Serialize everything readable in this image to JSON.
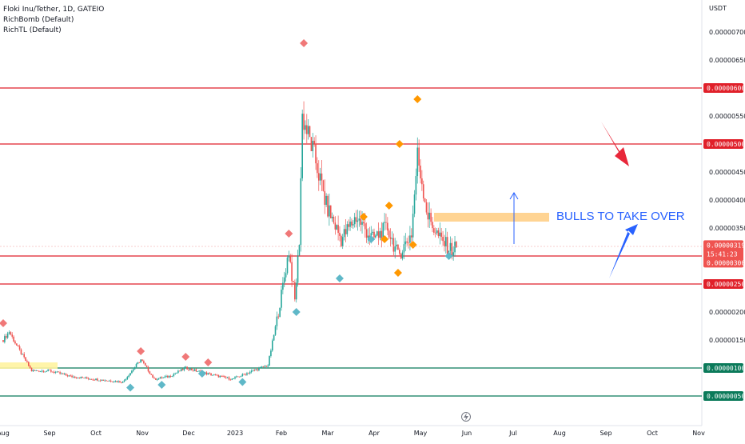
{
  "header": {
    "symbol_line": "Floki Inu/Tether, 1D, GATEIO",
    "indicators": [
      "RichBomb (Default)",
      "RichTL (Default)"
    ]
  },
  "price_axis": {
    "currency": "USDT",
    "ticks": [
      "0.00000700000",
      "0.00000650000",
      "0.00000550000",
      "0.00000450000",
      "0.00000400000",
      "0.00000350000",
      "0.00000200000",
      "0.00000150000"
    ]
  },
  "badges": {
    "current_price": "0.00000319428",
    "countdown": "15:41:23",
    "level_300": "0.00000300000",
    "level_600": "0.00000600000",
    "level_500": "0.00000500000",
    "level_250": "0.00000250000",
    "level_100": "0.00000100000",
    "level_050": "0.00000050000"
  },
  "time_axis": [
    "Aug",
    "Sep",
    "Oct",
    "Nov",
    "Dec",
    "2023",
    "Feb",
    "Mar",
    "Apr",
    "May",
    "Jun",
    "Jul",
    "Aug",
    "Sep",
    "Oct",
    "Nov"
  ],
  "annotation": {
    "text": "BULLS TO TAKE OVER"
  },
  "colors": {
    "bull": "#26a69a",
    "bear": "#ef5350",
    "red_line": "#e0202a",
    "green_line": "#0b7a5a",
    "blue": "#2962ff",
    "orange_zone": "#ffcc80",
    "diamond_red": "#f07878",
    "diamond_orange": "#ff9800",
    "diamond_teal": "#5fb8c8"
  },
  "chart_data": {
    "type": "candlestick",
    "title": "Floki Inu/Tether, 1D, GATEIO",
    "ylabel": "USDT",
    "ylim": [
      3e-07,
      7.5e-06
    ],
    "horizontal_levels": [
      {
        "value": 6e-06,
        "color": "red"
      },
      {
        "value": 5e-06,
        "color": "red"
      },
      {
        "value": 3e-06,
        "color": "red"
      },
      {
        "value": 2.5e-06,
        "color": "red"
      },
      {
        "value": 1e-06,
        "color": "green"
      },
      {
        "value": 5e-07,
        "color": "green"
      }
    ],
    "last_price": 3.19428e-06,
    "price_path": [
      [
        "2022-08-01",
        1.5e-06
      ],
      [
        "2022-08-05",
        1.65e-06
      ],
      [
        "2022-08-10",
        1.4e-06
      ],
      [
        "2022-08-20",
        9.5e-07
      ],
      [
        "2022-09-01",
        9.5e-07
      ],
      [
        "2022-09-15",
        8.5e-07
      ],
      [
        "2022-10-01",
        8e-07
      ],
      [
        "2022-10-20",
        7.5e-07
      ],
      [
        "2022-11-01",
        1.15e-06
      ],
      [
        "2022-11-10",
        8e-07
      ],
      [
        "2022-11-20",
        8.5e-07
      ],
      [
        "2022-12-01",
        1e-06
      ],
      [
        "2022-12-15",
        9e-07
      ],
      [
        "2023-01-01",
        8e-07
      ],
      [
        "2023-01-15",
        9.5e-07
      ],
      [
        "2023-01-25",
        1.05e-06
      ],
      [
        "2023-02-01",
        2e-06
      ],
      [
        "2023-02-08",
        3.1e-06
      ],
      [
        "2023-02-12",
        2.2e-06
      ],
      [
        "2023-02-15",
        3.3e-06
      ],
      [
        "2023-02-17",
        5.5e-06
      ],
      [
        "2023-02-25",
        4.8e-06
      ],
      [
        "2023-03-05",
        3.9e-06
      ],
      [
        "2023-03-15",
        3.3e-06
      ],
      [
        "2023-03-25",
        3.7e-06
      ],
      [
        "2023-04-05",
        3.3e-06
      ],
      [
        "2023-04-15",
        3.5e-06
      ],
      [
        "2023-04-22",
        3e-06
      ],
      [
        "2023-05-01",
        3.4e-06
      ],
      [
        "2023-05-05",
        4.8e-06
      ],
      [
        "2023-05-12",
        3.7e-06
      ],
      [
        "2023-05-20",
        3.3e-06
      ],
      [
        "2023-05-28",
        3.1e-06
      ],
      [
        "2023-06-01",
        3.19e-06
      ]
    ],
    "signals": [
      {
        "x": "2022-08-01",
        "y": 1.8e-06,
        "type": "red-diamond"
      },
      {
        "x": "2022-10-25",
        "y": 6.5e-07,
        "type": "teal-diamond"
      },
      {
        "x": "2022-11-01",
        "y": 1.3e-06,
        "type": "red-diamond"
      },
      {
        "x": "2022-11-15",
        "y": 7e-07,
        "type": "teal-diamond"
      },
      {
        "x": "2022-12-01",
        "y": 1.2e-06,
        "type": "red-diamond"
      },
      {
        "x": "2022-12-12",
        "y": 9e-07,
        "type": "teal-diamond"
      },
      {
        "x": "2022-12-16",
        "y": 1.1e-06,
        "type": "red-diamond"
      },
      {
        "x": "2023-01-08",
        "y": 7.5e-07,
        "type": "teal-diamond"
      },
      {
        "x": "2023-02-08",
        "y": 3.4e-06,
        "type": "red-diamond"
      },
      {
        "x": "2023-02-13",
        "y": 2e-06,
        "type": "teal-diamond"
      },
      {
        "x": "2023-02-18",
        "y": 6.8e-06,
        "type": "red-diamond"
      },
      {
        "x": "2023-03-14",
        "y": 2.6e-06,
        "type": "teal-diamond"
      },
      {
        "x": "2023-03-30",
        "y": 3.7e-06,
        "type": "orange-diamond"
      },
      {
        "x": "2023-04-04",
        "y": 3.3e-06,
        "type": "teal-diamond"
      },
      {
        "x": "2023-04-13",
        "y": 3.3e-06,
        "type": "orange-diamond"
      },
      {
        "x": "2023-04-16",
        "y": 3.9e-06,
        "type": "orange-diamond"
      },
      {
        "x": "2023-04-22",
        "y": 2.7e-06,
        "type": "orange-diamond"
      },
      {
        "x": "2023-04-23",
        "y": 5e-06,
        "type": "orange-diamond"
      },
      {
        "x": "2023-05-02",
        "y": 3.2e-06,
        "type": "orange-diamond"
      },
      {
        "x": "2023-05-05",
        "y": 5.8e-06,
        "type": "orange-diamond"
      },
      {
        "x": "2023-05-26",
        "y": 3e-06,
        "type": "teal-diamond"
      }
    ]
  }
}
